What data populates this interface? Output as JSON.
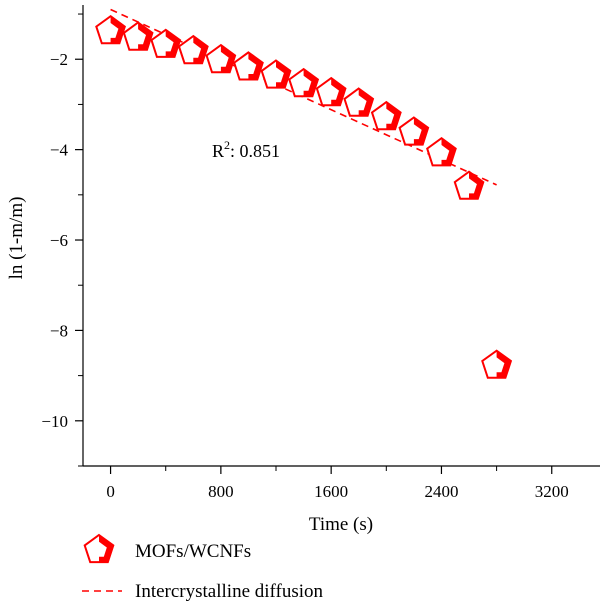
{
  "chart_data": {
    "type": "scatter",
    "xlabel": "Time (s)",
    "ylabel": "ln (1-m/m)",
    "xlim": [
      -200,
      3550
    ],
    "ylim": [
      -11,
      -0.8
    ],
    "x_ticks": [
      0,
      800,
      1600,
      2400,
      3200
    ],
    "y_ticks": [
      -2,
      -4,
      -6,
      -8,
      -10
    ],
    "x_tick_labels": [
      "0",
      "800",
      "1600",
      "2400",
      "3200"
    ],
    "y_tick_labels": [
      "−2",
      "−4",
      "−6",
      "−8",
      "−10"
    ],
    "grid": false,
    "legend_position": "bottom",
    "annotation": {
      "prefix": "R",
      "superscript": "2",
      "value": ": 0.851"
    },
    "series": [
      {
        "name": "MOFs/WCNFs",
        "marker": "pentagon",
        "color": "#ff0000",
        "x": [
          0,
          200,
          400,
          600,
          800,
          1000,
          1200,
          1400,
          1600,
          1800,
          2000,
          2200,
          2400,
          2600,
          2800
        ],
        "y": [
          -1.38,
          -1.52,
          -1.68,
          -1.82,
          -2.02,
          -2.18,
          -2.36,
          -2.55,
          -2.75,
          -2.98,
          -3.28,
          -3.62,
          -4.08,
          -4.82,
          -8.78
        ]
      },
      {
        "name": "Intercrystalline diffusion",
        "style": "dashed",
        "color": "#ff0000",
        "x": [
          0,
          2800
        ],
        "y": [
          -0.9,
          -4.78
        ]
      }
    ]
  }
}
